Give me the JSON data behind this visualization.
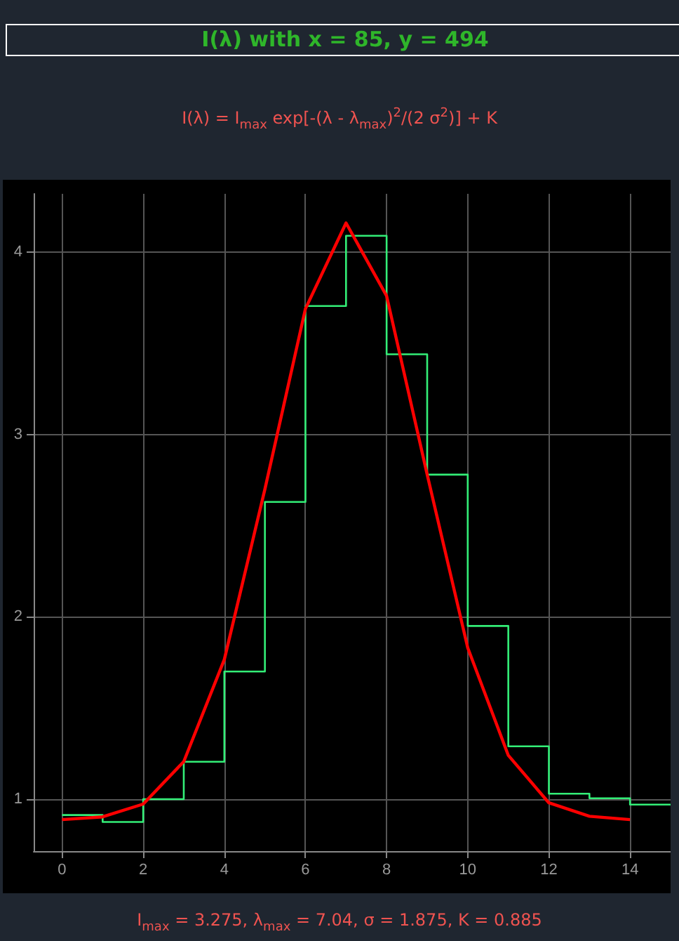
{
  "chart_data": {
    "type": "line",
    "title": "I(λ) with x = 85, y = 494",
    "subtitle": "I(λ) = I$_{max}$ exp[-(λ - λ$_{max}$)$^{2}$/(2 σ$^{2}$)] + K",
    "annotations": [
      "I$_{max}$ = 3.275, λ$_{max}$ = 7.04, σ = 1.875, K = 0.885"
    ],
    "xlim": [
      -0.7,
      15
    ],
    "xticks": [
      0,
      2,
      4,
      6,
      8,
      10,
      12,
      14
    ],
    "ylim": [
      0.715,
      4.32
    ],
    "yticks": [
      1,
      2,
      3,
      4
    ],
    "grid": true,
    "marker": "none",
    "series": [
      {
        "type": "step",
        "color": "#33ee77",
        "x": [
          0,
          1,
          2,
          3,
          4,
          5,
          6,
          7,
          8,
          9,
          10,
          11,
          12,
          13,
          14,
          15
        ],
        "values": [
          0.913,
          0.875,
          1.0,
          1.205,
          1.7,
          2.63,
          3.705,
          4.09,
          3.44,
          2.78,
          1.95,
          1.29,
          1.03,
          1.005,
          0.97,
          0.97
        ]
      },
      {
        "type": "line",
        "color": "#ff0000",
        "x": [
          0,
          1,
          2,
          3,
          4,
          5,
          6,
          7,
          8,
          9,
          10,
          11,
          12,
          13,
          14
        ],
        "values": [
          0.888,
          0.903,
          0.973,
          1.206,
          1.766,
          2.7,
          3.69,
          4.16,
          3.76,
          2.78,
          1.83,
          1.24,
          0.98,
          0.906,
          0.888
        ]
      }
    ]
  }
}
